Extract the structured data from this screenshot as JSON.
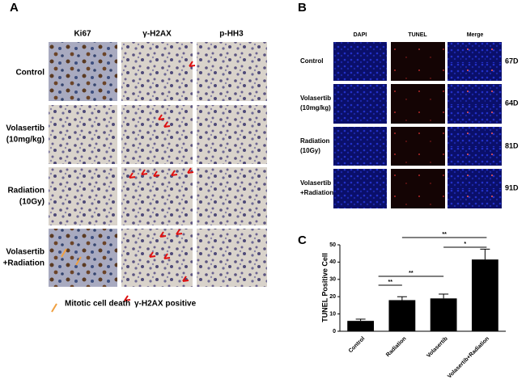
{
  "panel_a": {
    "label": "A",
    "columns": [
      "Ki67",
      "γ-H2AX",
      "p-HH3"
    ],
    "rows": [
      [
        "Control"
      ],
      [
        "Volasertib",
        "(10mg/kg)"
      ],
      [
        "Radiation",
        "(10Gy)"
      ],
      [
        "Volasertib",
        "+Radiation"
      ]
    ],
    "legend": [
      "Mitotic cell death",
      "γ-H2AX positive"
    ]
  },
  "panel_b": {
    "label": "B",
    "columns": [
      "DAPI",
      "TUNEL",
      "Merge"
    ],
    "rows": [
      [
        "Control"
      ],
      [
        "Volasertib",
        "(10mg/kg)"
      ],
      [
        "Radiation",
        "(10Gy)"
      ],
      [
        "Volasertib",
        "+Radiation"
      ]
    ],
    "days": [
      "67D",
      "64D",
      "81D",
      "91D"
    ]
  },
  "chart_data": {
    "type": "bar",
    "label": "C",
    "y_label": "TUNEL Positive Cell",
    "categories": [
      "Control",
      "Radiation",
      "Volasertib",
      "Volasertib+Radiation"
    ],
    "values": [
      6,
      18,
      19,
      41.5
    ],
    "errors": [
      1,
      2,
      2.5,
      6
    ],
    "color": "#000000",
    "ylim": [
      0,
      50
    ],
    "yticks": [
      0,
      10,
      20,
      30,
      40,
      50
    ],
    "comparisons": [
      {
        "pair": [
          0,
          1
        ],
        "label": "**"
      },
      {
        "pair": [
          0,
          2
        ],
        "label": "**"
      },
      {
        "pair": [
          1,
          3
        ],
        "label": "**"
      },
      {
        "pair": [
          2,
          3
        ],
        "label": "*"
      }
    ]
  }
}
